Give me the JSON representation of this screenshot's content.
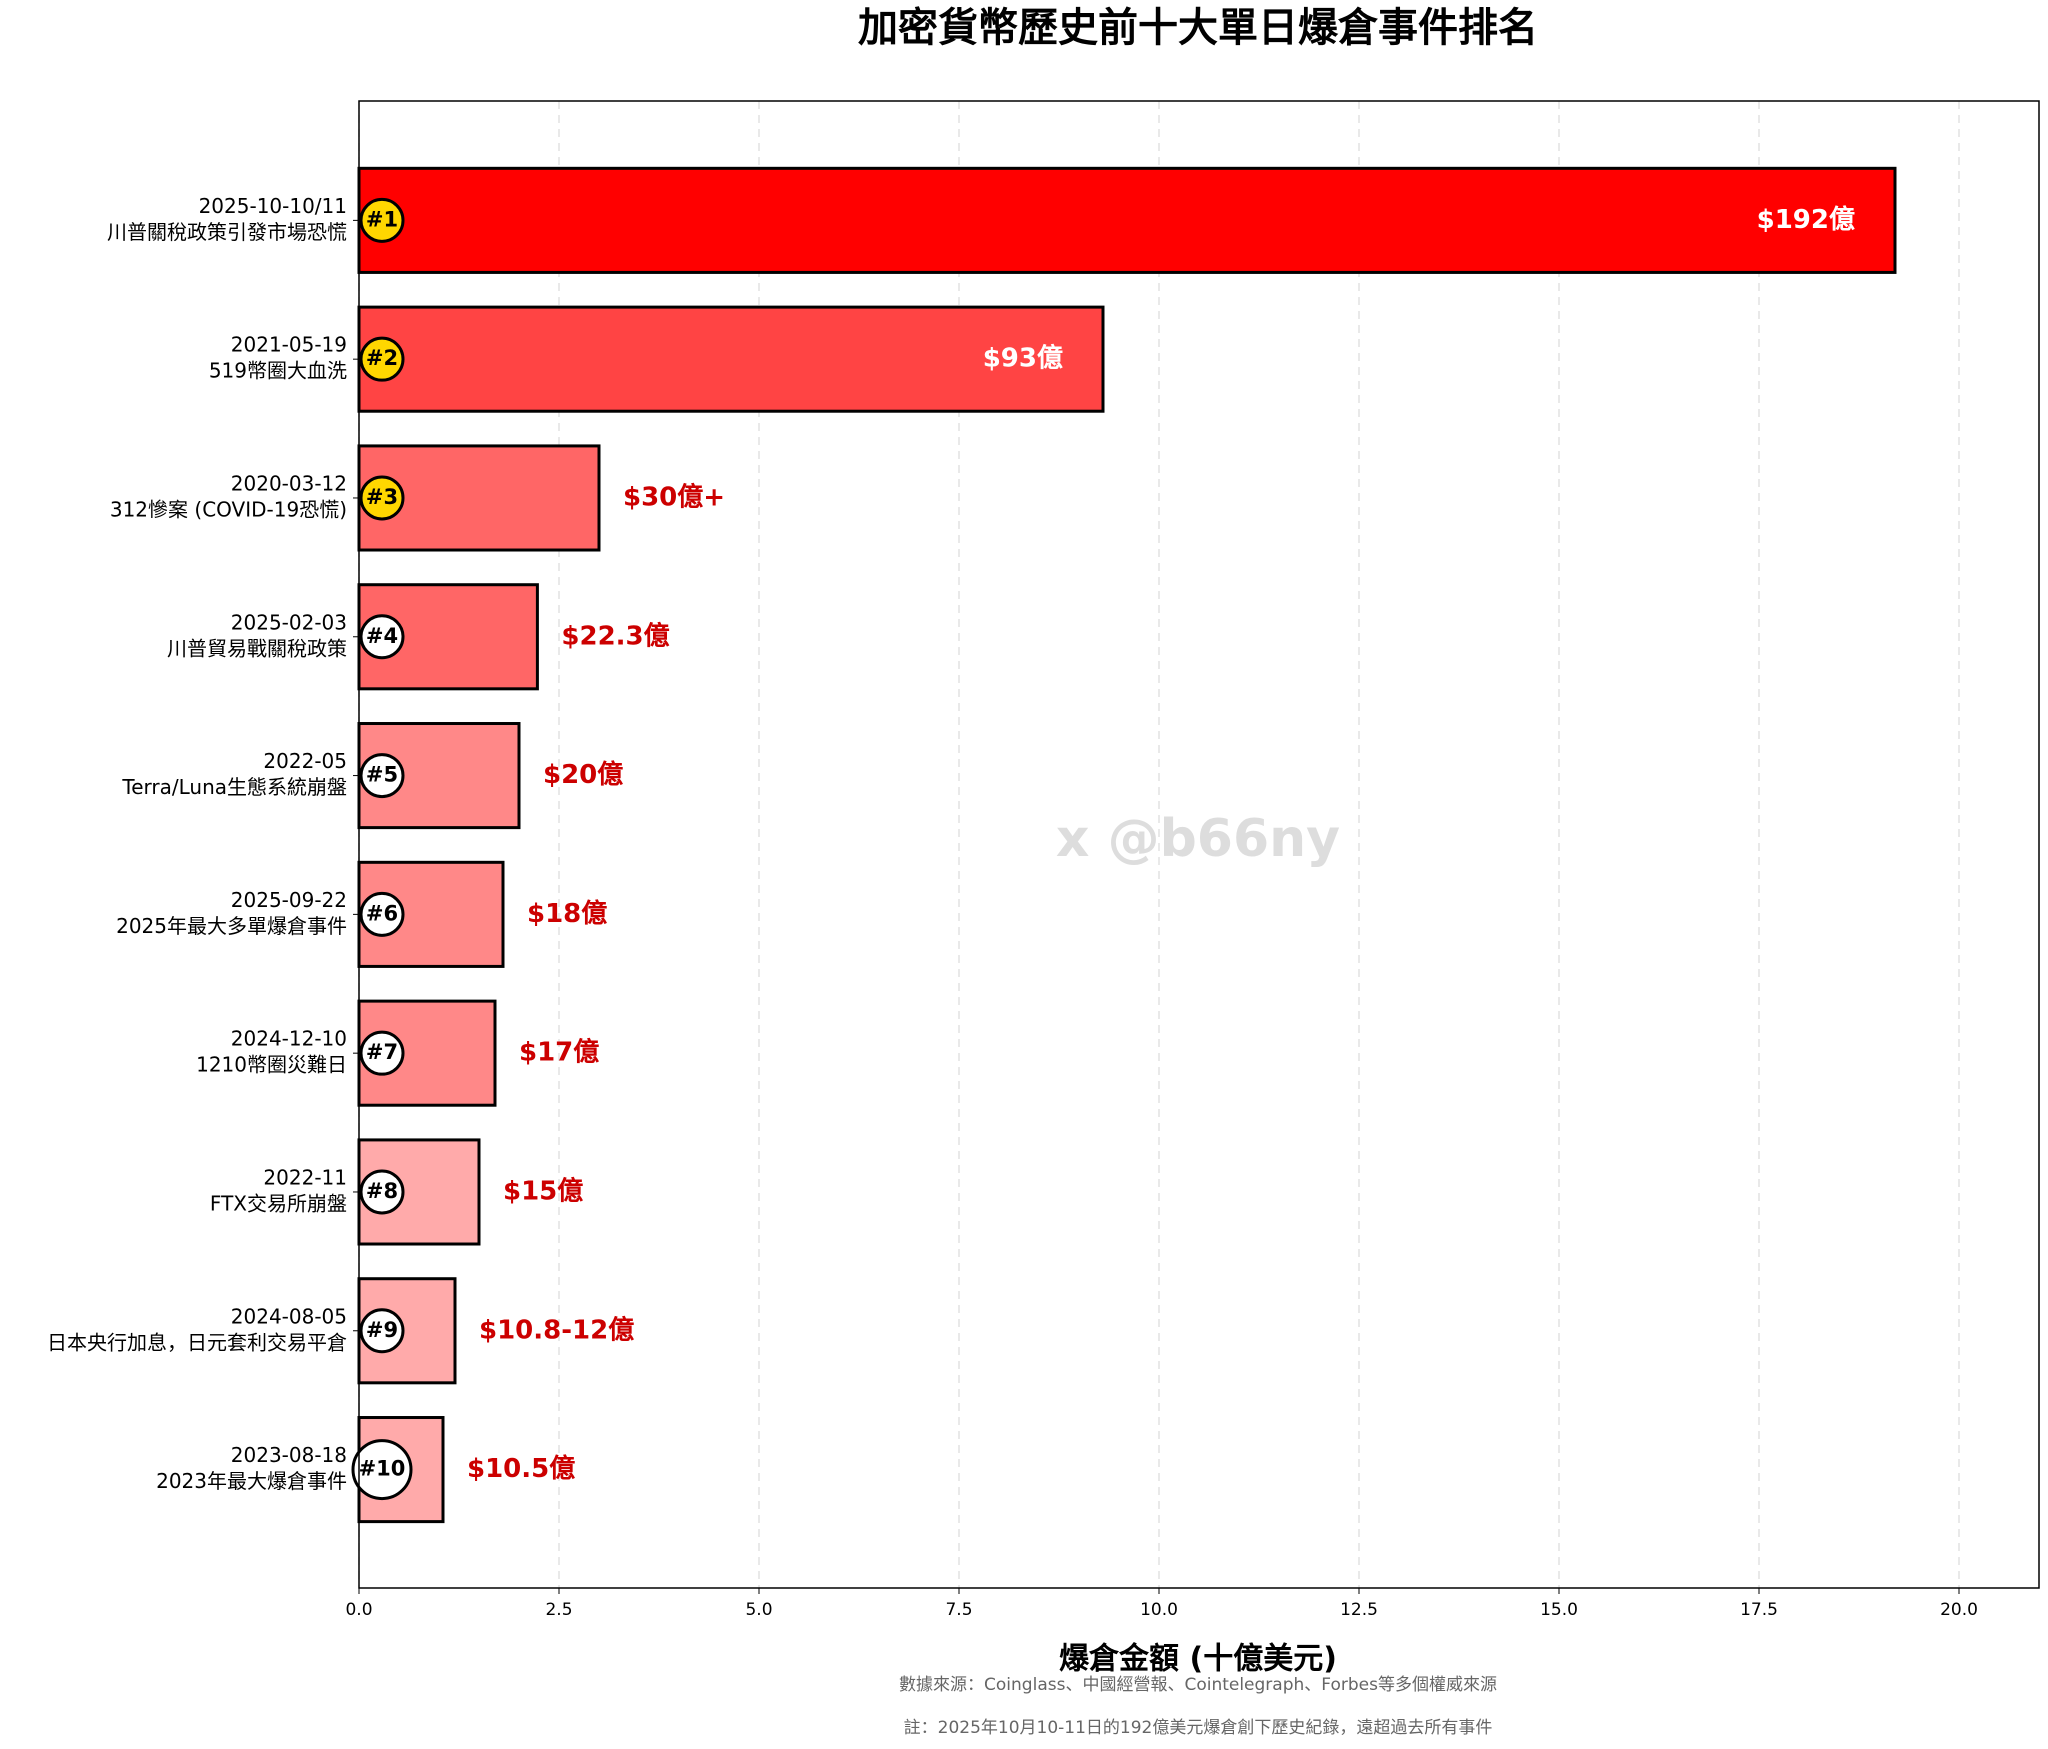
{
  "chart_data": {
    "type": "barh",
    "title": "加密貨幣歷史前十大單日爆倉事件排名",
    "x_label": "爆倉金額 (十億美元)",
    "notes": [
      "數據來源：Coinglass、中國經營報、Cointelegraph、Forbes等多個權威來源",
      "註：2025年10月10-11日的192億美元爆倉創下歷史紀錄，遠超過去所有事件"
    ],
    "watermark": "x @b66ny",
    "dates": [
      "2025-10-10/11",
      "2021-05-19",
      "2020-03-12",
      "2025-02-03",
      "2022-05",
      "2025-09-22",
      "2024-12-10",
      "2022-11",
      "2024-08-05",
      "2023-08-18"
    ],
    "categories": [
      "川普關稅政策引發市場恐慌",
      "519幣圈大血洗",
      "312慘案 (COVID-19恐慌)",
      "川普貿易戰關稅政策",
      "Terra/Luna生態系統崩盤",
      "2025年最大多單爆倉事件",
      "1210幣圈災難日",
      "FTX交易所崩盤",
      "日本央行加息，日元套利交易平倉",
      "2023年最大爆倉事件"
    ],
    "ranks": [
      "#1",
      "#2",
      "#3",
      "#4",
      "#5",
      "#6",
      "#7",
      "#8",
      "#9",
      "#10"
    ],
    "values": [
      19.2,
      9.3,
      3.0,
      2.23,
      2.0,
      1.8,
      1.7,
      1.5,
      1.2,
      1.05
    ],
    "value_labels": [
      "$192億",
      "$93億",
      "$30億+",
      "$22.3億",
      "$20億",
      "$18億",
      "$17億",
      "$15億",
      "$10.8-12億",
      "$10.5億"
    ],
    "colors": [
      "#ff0000",
      "#ff4444",
      "#ff6666",
      "#ff6666",
      "#ff8888",
      "#ff8888",
      "#ff8888",
      "#ffaaaa",
      "#ffaaaa",
      "#ffaaaa"
    ],
    "rank_colors": [
      "#ffd700",
      "#ffd700",
      "#ffd700",
      "#ffffff",
      "#ffffff",
      "#ffffff",
      "#ffffff",
      "#ffffff",
      "#ffffff",
      "#ffffff"
    ],
    "xlim": [
      0,
      21
    ],
    "xticks": [
      {
        "value": 0,
        "label": "0.0"
      },
      2.5,
      {
        "value": 5,
        "label": "5.0"
      },
      7.5,
      {
        "value": 10,
        "label": "10.0"
      },
      12.5,
      {
        "value": 15,
        "label": "15.0"
      },
      17.5,
      {
        "value": 20,
        "label": "20.0"
      }
    ],
    "grid": true
  }
}
